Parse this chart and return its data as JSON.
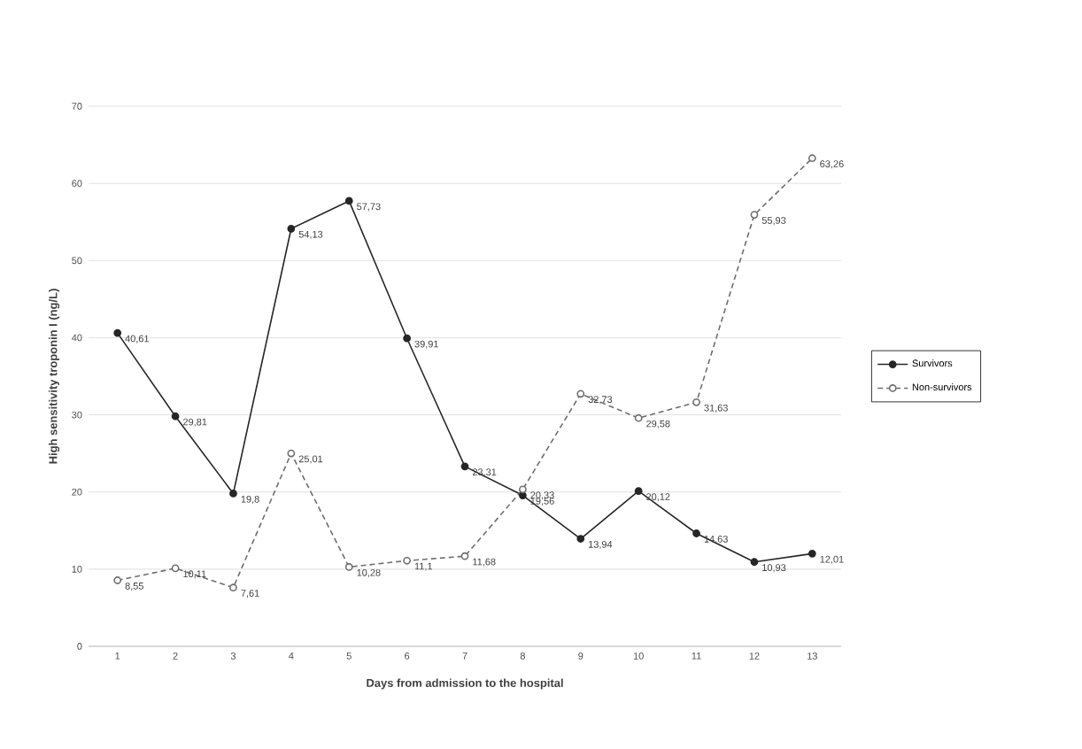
{
  "chart_data": {
    "type": "line",
    "xlabel": "Days from admission to the hospital",
    "ylabel": "High sensitivity troponin I (ng/L)",
    "categories": [
      "1",
      "2",
      "3",
      "4",
      "5",
      "6",
      "7",
      "8",
      "9",
      "10",
      "11",
      "12",
      "13"
    ],
    "ylim": [
      0,
      70
    ],
    "yticks": [
      0,
      10,
      20,
      30,
      40,
      50,
      60,
      70
    ],
    "grid": "y",
    "legend": "right",
    "series": [
      {
        "name": "Survivors",
        "color": "#262626",
        "marker": "circle",
        "line_style": "solid",
        "values": [
          40.61,
          29.81,
          19.8,
          54.13,
          57.73,
          39.91,
          23.31,
          19.56,
          13.94,
          20.12,
          14.63,
          10.93,
          12.01
        ],
        "value_labels": [
          "40,61",
          "29,81",
          "19,8",
          "54,13",
          "57,73",
          "39,91",
          "23,31",
          "19,56",
          "13,94",
          "20,12",
          "14,63",
          "10,93",
          "12,01"
        ]
      },
      {
        "name": "Non-survivors",
        "color": "#6e6e6e",
        "marker": "circle",
        "line_style": "dashed",
        "values": [
          8.55,
          10.11,
          7.61,
          25.01,
          10.28,
          11.1,
          11.68,
          20.33,
          32.73,
          29.58,
          31.63,
          55.93,
          63.26
        ],
        "value_labels": [
          "8,55",
          "10,11",
          "7,61",
          "25,01",
          "10,28",
          "11,1",
          "11,68",
          "20,33",
          "32,73",
          "29,58",
          "31,63",
          "55,93",
          "63,26"
        ]
      }
    ]
  }
}
